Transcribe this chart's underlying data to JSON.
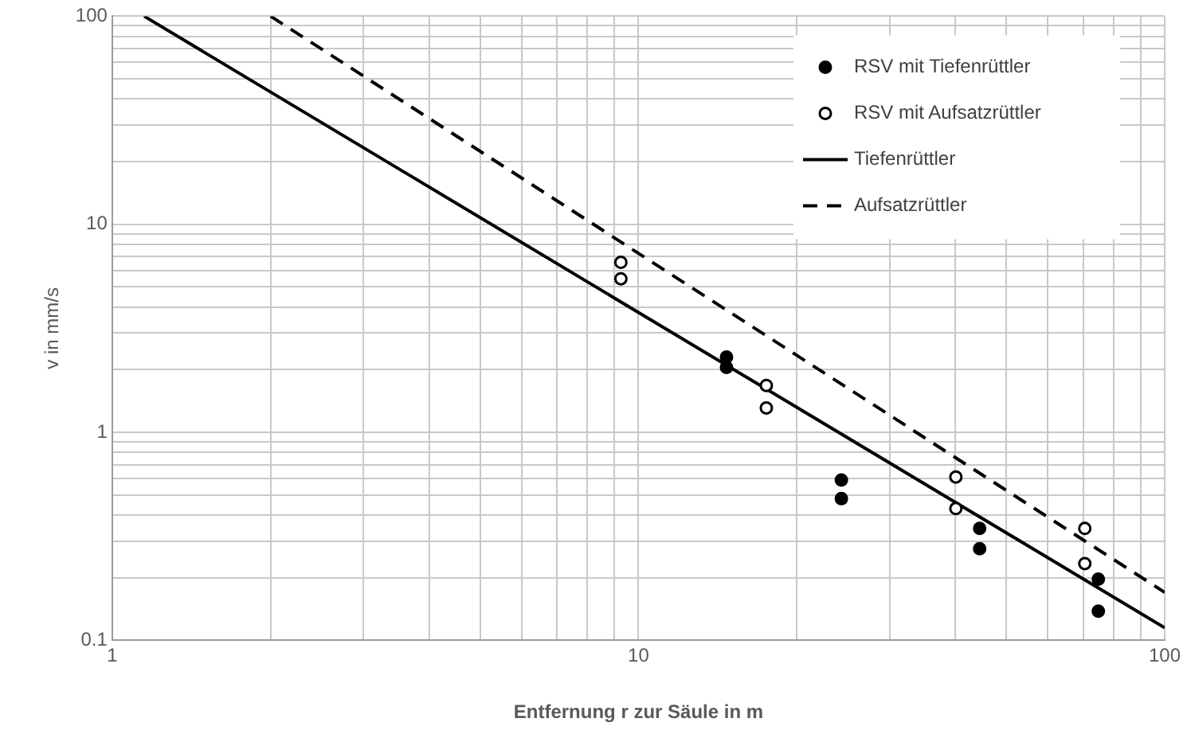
{
  "chart_data": {
    "type": "scatter",
    "xlabel": "Entfernung r zur Säule in m",
    "ylabel": "v in mm/s",
    "log": "xy",
    "grid": true,
    "legend": "top right",
    "xlim": [
      1,
      100
    ],
    "ylim": [
      0.1,
      100
    ],
    "xticks": [
      1,
      {
        "value": 2,
        "label": null
      },
      {
        "value": 3,
        "label": null
      },
      {
        "value": 4,
        "label": null
      },
      {
        "value": 5,
        "label": null
      },
      {
        "value": 6,
        "label": null
      },
      {
        "value": 7,
        "label": null
      },
      {
        "value": 8,
        "label": null
      },
      {
        "value": 9,
        "label": null
      },
      10,
      {
        "value": 20,
        "label": null
      },
      {
        "value": 30,
        "label": null
      },
      {
        "value": 40,
        "label": null
      },
      {
        "value": 50,
        "label": null
      },
      {
        "value": 60,
        "label": null
      },
      {
        "value": 70,
        "label": null
      },
      {
        "value": 80,
        "label": null
      },
      {
        "value": 90,
        "label": null
      },
      100
    ],
    "yticks": [
      0.1,
      {
        "value": 0.2,
        "label": null
      },
      {
        "value": 0.3,
        "label": null
      },
      {
        "value": 0.4,
        "label": null
      },
      {
        "value": 0.5,
        "label": null
      },
      {
        "value": 0.6,
        "label": null
      },
      {
        "value": 0.7,
        "label": null
      },
      {
        "value": 0.8,
        "label": null
      },
      {
        "value": 0.9,
        "label": null
      },
      1,
      {
        "value": 2,
        "label": null
      },
      {
        "value": 3,
        "label": null
      },
      {
        "value": 4,
        "label": null
      },
      {
        "value": 5,
        "label": null
      },
      {
        "value": 6,
        "label": null
      },
      {
        "value": 7,
        "label": null
      },
      {
        "value": 8,
        "label": null
      },
      {
        "value": 9,
        "label": null
      },
      10,
      {
        "value": 20,
        "label": null
      },
      {
        "value": 30,
        "label": null
      },
      {
        "value": 40,
        "label": null
      },
      {
        "value": 50,
        "label": null
      },
      {
        "value": 60,
        "label": null
      },
      {
        "value": 70,
        "label": null
      },
      {
        "value": 80,
        "label": null
      },
      {
        "value": 90,
        "label": null
      },
      100
    ],
    "series": [
      {
        "name": "RSV mit Tiefenrüttler",
        "marker": "circle",
        "color": "#000000",
        "x": [
          14.7,
          14.7,
          24.3,
          24.3,
          44.5,
          44.5,
          74.8,
          74.8
        ],
        "values": [
          2.3,
          2.05,
          0.59,
          0.48,
          0.345,
          0.276,
          0.197,
          0.138
        ]
      },
      {
        "name": "RSV mit Aufsatzrüttler",
        "marker": "circle",
        "color": "#ffffff",
        "x": [
          9.26,
          9.26,
          17.5,
          17.5,
          40.1,
          40.1,
          70.5,
          70.5
        ],
        "values": [
          6.56,
          5.47,
          1.68,
          1.31,
          0.61,
          0.43,
          0.345,
          0.234
        ]
      },
      {
        "name": "Tiefenrüttler",
        "type": "line",
        "marker": "none",
        "line_style": "solid",
        "color": "#000000",
        "x": [
          1.15,
          100
        ],
        "values": [
          100,
          0.115
        ]
      },
      {
        "name": "Aufsatzrüttler",
        "type": "line",
        "marker": "none",
        "line_style": "dashed",
        "color": "#000000",
        "x": [
          2,
          100
        ],
        "values": [
          100,
          0.17
        ]
      }
    ]
  }
}
